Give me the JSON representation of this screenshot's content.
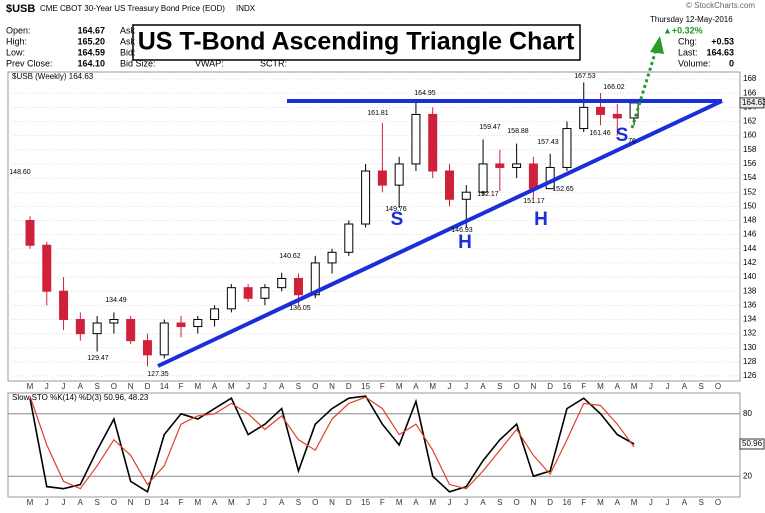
{
  "header": {
    "symbol": "$USB",
    "description": "CME CBOT 30-Year US Treasury Bond Price (EOD)",
    "exchange": "INDX",
    "copyright": "© StockCharts.com",
    "left": [
      {
        "label": "Open:",
        "value": "164.67"
      },
      {
        "label": "High:",
        "value": "165.20"
      },
      {
        "label": "Low:",
        "value": "164.59"
      },
      {
        "label": "Prev Close:",
        "value": "164.10"
      }
    ],
    "mid": [
      "Ask",
      "Ask",
      "Bid:",
      "Bid Size:"
    ],
    "extra": [
      "VWAP:",
      "SCTR:"
    ],
    "date": "Thursday 12-May-2016",
    "change_pct": "▲+0.32%",
    "right": [
      {
        "label": "Chg:",
        "value": "+0.53"
      },
      {
        "label": "Last:",
        "value": "164.63"
      },
      {
        "label": "Volume:",
        "value": "0"
      }
    ],
    "title": "US T-Bond Ascending Triangle Chart"
  },
  "chart_data": [
    {
      "type": "candlestick",
      "legend": "$USB (Weekly) 164.63",
      "last_tag": "164.63",
      "categories": [
        "M",
        "J",
        "J",
        "A",
        "S",
        "O",
        "N",
        "D",
        "14",
        "F",
        "M",
        "A",
        "M",
        "J",
        "J",
        "A",
        "S",
        "O",
        "N",
        "D",
        "15",
        "F",
        "M",
        "A",
        "M",
        "J",
        "J",
        "A",
        "S",
        "O",
        "N",
        "D",
        "16",
        "F",
        "M",
        "A",
        "M",
        "J",
        "J",
        "A",
        "S",
        "O"
      ],
      "open": [
        148,
        144.5,
        138,
        134,
        132,
        133.5,
        134,
        131,
        129,
        133.5,
        133,
        134,
        135.5,
        138.5,
        137,
        138.5,
        139.8,
        137.5,
        142,
        143.5,
        147.5,
        155,
        153,
        156,
        163,
        155,
        151,
        152,
        156,
        155.5,
        156,
        152.5,
        155.5,
        161,
        164,
        163,
        162.5,
        null,
        null,
        null,
        null,
        null
      ],
      "high": [
        148.6,
        145,
        140,
        135,
        134.49,
        135,
        134.5,
        132,
        134,
        134.5,
        134.5,
        136,
        139,
        139,
        139,
        140.62,
        140.5,
        143,
        144,
        148,
        156,
        161.81,
        157,
        164.95,
        164,
        156,
        153,
        159.47,
        158,
        158.88,
        157,
        157.43,
        162,
        167.53,
        166.02,
        164.5,
        165.2,
        null,
        null,
        null,
        null,
        null
      ],
      "low": [
        144,
        136,
        132.5,
        131,
        129.47,
        132,
        130.5,
        127.35,
        128.5,
        131.5,
        132,
        133,
        135,
        136.5,
        136,
        138,
        136.05,
        137,
        140.5,
        143,
        147,
        152,
        149.76,
        155,
        154,
        150,
        146.93,
        151.5,
        152.17,
        154,
        151.17,
        152.65,
        155,
        160.5,
        161.46,
        160,
        161.5,
        null,
        null,
        null,
        null,
        null
      ],
      "close": [
        144.5,
        138,
        134,
        132,
        133.5,
        134,
        131,
        129,
        133.5,
        133,
        134,
        135.5,
        138.5,
        137,
        138.5,
        139.8,
        137.5,
        142,
        143.5,
        147.5,
        155,
        153,
        156,
        163,
        155,
        151,
        152,
        156,
        155.5,
        156,
        152.5,
        155.5,
        161,
        164,
        163,
        162.5,
        164.63,
        null,
        null,
        null,
        null,
        null
      ],
      "up_color": "#000000",
      "down_color": "#d0213a",
      "ylim": [
        125.3,
        169
      ],
      "yticks": [
        126,
        128,
        130,
        132,
        134,
        136,
        138,
        140,
        142,
        144,
        146,
        148,
        150,
        152,
        154,
        156,
        158,
        160,
        162,
        164,
        166,
        168
      ],
      "grid": true,
      "price_labels": [
        "148.60",
        "134.49",
        "129.47",
        "127.35",
        "140.62",
        "136.05",
        "161.81",
        "149.76",
        "164.95",
        "146.93",
        "159.47",
        "158.88",
        "152.17",
        "157.43",
        "151.17",
        "152.65",
        "167.53",
        "166.02",
        "161.46",
        "76"
      ],
      "pattern_labels": [
        "S",
        "H",
        "H",
        "S"
      ]
    },
    {
      "type": "line",
      "legend": "Slow STO %K(14) %D(3) 50.96, 48.23",
      "last_tag": "50.96",
      "categories": [
        "M",
        "J",
        "J",
        "A",
        "S",
        "O",
        "N",
        "D",
        "14",
        "F",
        "M",
        "A",
        "M",
        "J",
        "J",
        "A",
        "S",
        "O",
        "N",
        "D",
        "15",
        "F",
        "M",
        "A",
        "M",
        "J",
        "J",
        "A",
        "S",
        "O",
        "N",
        "D",
        "16",
        "F",
        "M",
        "A",
        "M",
        "J",
        "J",
        "A",
        "S",
        "O"
      ],
      "series": [
        {
          "name": "%K(14)",
          "color": "#000000",
          "values": [
            95,
            10,
            8,
            12,
            45,
            75,
            15,
            5,
            60,
            80,
            75,
            85,
            95,
            60,
            70,
            85,
            25,
            70,
            85,
            95,
            97,
            70,
            50,
            92,
            20,
            5,
            10,
            35,
            55,
            70,
            20,
            25,
            85,
            95,
            80,
            60,
            50.96,
            null,
            null,
            null,
            null,
            null
          ]
        },
        {
          "name": "%D(3)",
          "color": "#e0402a",
          "values": [
            97,
            50,
            15,
            8,
            30,
            55,
            40,
            12,
            30,
            70,
            78,
            80,
            90,
            80,
            65,
            78,
            55,
            45,
            75,
            90,
            96,
            85,
            60,
            70,
            45,
            12,
            8,
            25,
            45,
            65,
            40,
            22,
            55,
            90,
            88,
            70,
            48.23,
            null,
            null,
            null,
            null,
            null
          ]
        }
      ],
      "ylim": [
        0,
        100
      ],
      "yticks": [
        20,
        80
      ],
      "grid": true
    }
  ]
}
